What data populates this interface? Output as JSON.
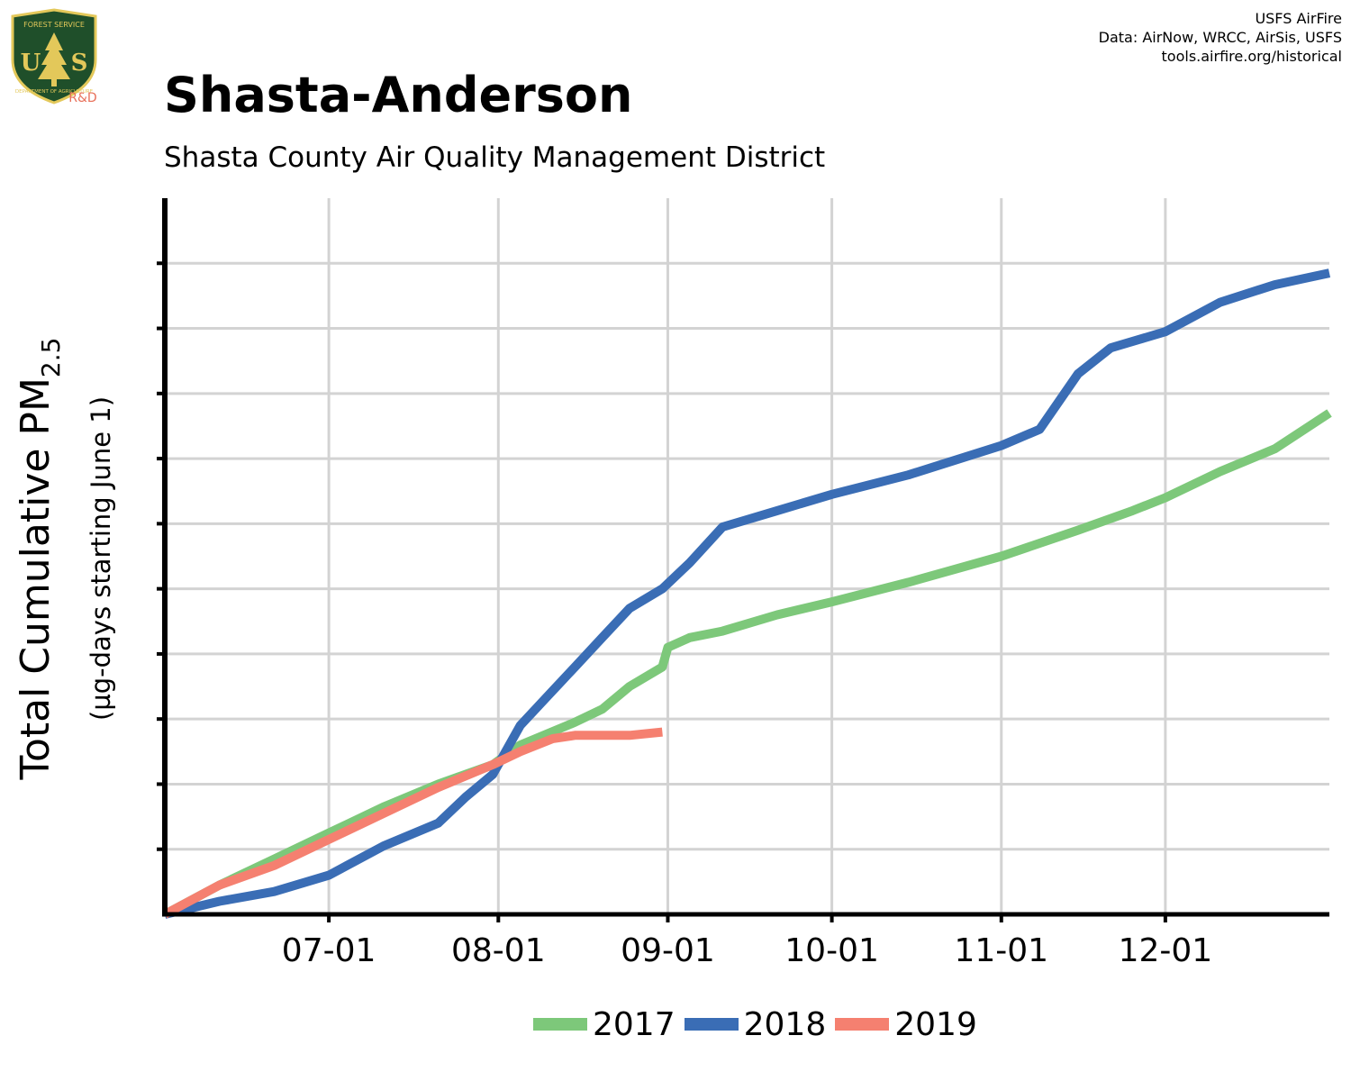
{
  "credits": {
    "line1": "USFS AirFire",
    "line2": "Data: AirNow, WRCC, AirSis, USFS",
    "line3": "tools.airfire.org/historical"
  },
  "logo": {
    "icon": "usfs-shield-icon",
    "top_text": "FOREST SERVICE",
    "letters_left": "U",
    "letters_right": "S",
    "bottom_text": "DEPARTMENT OF AGRICULTURE",
    "badge": "R&D"
  },
  "title": "Shasta-Anderson",
  "subtitle": "Shasta County Air Quality Management District",
  "colors": {
    "2017": "#7dc87a",
    "2018": "#3a6db5",
    "2019": "#f58070",
    "grid": "#d3d3d3",
    "axis": "#000000",
    "logo_green": "#1f4f2a",
    "logo_gold": "#e3c85a",
    "badge": "#e8705a"
  },
  "chart_data": {
    "type": "line",
    "ylabel": "Total Cumulative PM",
    "ylabel_subscript": "2.5",
    "ylabel_units": "(µg-days starting June 1)",
    "x_ticks": [
      "07-01",
      "08-01",
      "09-01",
      "10-01",
      "11-01",
      "12-01"
    ],
    "x_axis": "day of year, starting June 1; tick labels are month-day",
    "y_tick_labels_shown": false,
    "grid": true,
    "legend_position": "bottom",
    "series": [
      {
        "name": "2017",
        "points": [
          [
            "06-01",
            0.0
          ],
          [
            "06-11",
            0.45
          ],
          [
            "06-21",
            0.85
          ],
          [
            "07-01",
            1.25
          ],
          [
            "07-11",
            1.65
          ],
          [
            "07-21",
            2.0
          ],
          [
            "07-31",
            2.3
          ],
          [
            "08-05",
            2.6
          ],
          [
            "08-15",
            2.95
          ],
          [
            "08-20",
            3.15
          ],
          [
            "08-25",
            3.5
          ],
          [
            "08-31",
            3.8
          ],
          [
            "09-01",
            4.1
          ],
          [
            "09-05",
            4.25
          ],
          [
            "09-11",
            4.35
          ],
          [
            "09-21",
            4.6
          ],
          [
            "10-01",
            4.8
          ],
          [
            "10-15",
            5.1
          ],
          [
            "11-01",
            5.5
          ],
          [
            "11-15",
            5.9
          ],
          [
            "11-25",
            6.2
          ],
          [
            "12-01",
            6.4
          ],
          [
            "12-11",
            6.8
          ],
          [
            "12-21",
            7.15
          ],
          [
            "12-31",
            7.7
          ]
        ]
      },
      {
        "name": "2018",
        "points": [
          [
            "06-01",
            0.0
          ],
          [
            "06-11",
            0.2
          ],
          [
            "06-21",
            0.35
          ],
          [
            "07-01",
            0.6
          ],
          [
            "07-11",
            1.05
          ],
          [
            "07-21",
            1.4
          ],
          [
            "07-26",
            1.8
          ],
          [
            "07-31",
            2.15
          ],
          [
            "08-05",
            2.9
          ],
          [
            "08-10",
            3.35
          ],
          [
            "08-15",
            3.8
          ],
          [
            "08-20",
            4.25
          ],
          [
            "08-25",
            4.7
          ],
          [
            "08-31",
            5.0
          ],
          [
            "09-05",
            5.4
          ],
          [
            "09-11",
            5.95
          ],
          [
            "09-21",
            6.2
          ],
          [
            "10-01",
            6.45
          ],
          [
            "10-15",
            6.75
          ],
          [
            "11-01",
            7.2
          ],
          [
            "11-08",
            7.45
          ],
          [
            "11-15",
            8.3
          ],
          [
            "11-21",
            8.7
          ],
          [
            "12-01",
            8.95
          ],
          [
            "12-11",
            9.4
          ],
          [
            "12-21",
            9.67
          ],
          [
            "12-31",
            9.85
          ]
        ]
      },
      {
        "name": "2019",
        "points": [
          [
            "06-01",
            0.0
          ],
          [
            "06-11",
            0.45
          ],
          [
            "06-21",
            0.75
          ],
          [
            "07-01",
            1.15
          ],
          [
            "07-11",
            1.55
          ],
          [
            "07-21",
            1.95
          ],
          [
            "07-31",
            2.3
          ],
          [
            "08-05",
            2.5
          ],
          [
            "08-11",
            2.7
          ],
          [
            "08-15",
            2.75
          ],
          [
            "08-25",
            2.75
          ],
          [
            "08-31",
            2.8
          ]
        ]
      }
    ]
  }
}
